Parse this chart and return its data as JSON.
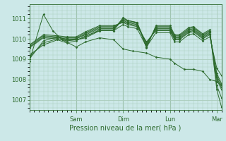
{
  "title": "Pression niveau de la mer( hPa )",
  "bg_color": "#cce8e8",
  "grid_color": "#aaccbb",
  "line_color": "#2d6a2d",
  "marker_color": "#2d6a2d",
  "ylim": [
    1006.5,
    1011.7
  ],
  "yticks": [
    1007,
    1008,
    1009,
    1010,
    1011
  ],
  "xlim_days": [
    0,
    4.1
  ],
  "day_positions": [
    1.0,
    2.0,
    3.0,
    4.0
  ],
  "day_labels": [
    "Sam",
    "Dim",
    "Lun",
    "Mar"
  ],
  "series": [
    {
      "x": [
        0.0,
        0.3,
        0.6,
        0.8,
        1.0,
        1.2,
        1.5,
        1.8,
        2.0,
        2.1,
        2.3,
        2.5,
        2.7,
        3.0,
        3.1,
        3.2,
        3.4,
        3.5,
        3.7,
        3.85,
        4.0,
        4.1
      ],
      "y": [
        1009.0,
        1009.9,
        1010.1,
        1009.95,
        1009.95,
        1010.05,
        1010.4,
        1010.4,
        1011.05,
        1010.9,
        1010.8,
        1009.55,
        1010.65,
        1010.65,
        1010.2,
        1010.2,
        1010.55,
        1010.6,
        1010.25,
        1010.45,
        1007.5,
        1006.65
      ]
    },
    {
      "x": [
        0.0,
        0.3,
        0.6,
        0.8,
        1.0,
        1.2,
        1.5,
        1.8,
        2.0,
        2.1,
        2.3,
        2.5,
        2.7,
        3.0,
        3.1,
        3.2,
        3.4,
        3.5,
        3.7,
        3.85,
        4.0,
        4.1
      ],
      "y": [
        1009.1,
        1009.8,
        1010.0,
        1009.9,
        1009.95,
        1010.1,
        1010.45,
        1010.45,
        1010.95,
        1010.85,
        1010.75,
        1009.6,
        1010.6,
        1010.6,
        1010.15,
        1010.15,
        1010.5,
        1010.55,
        1010.2,
        1010.4,
        1007.7,
        1007.1
      ]
    },
    {
      "x": [
        0.0,
        0.3,
        0.6,
        0.8,
        1.0,
        1.2,
        1.5,
        1.8,
        2.0,
        2.1,
        2.3,
        2.5,
        2.7,
        3.0,
        3.1,
        3.2,
        3.4,
        3.5,
        3.7,
        3.85,
        4.0,
        4.1
      ],
      "y": [
        1009.55,
        1010.05,
        1010.0,
        1009.95,
        1010.0,
        1010.2,
        1010.5,
        1010.5,
        1011.0,
        1010.9,
        1010.8,
        1009.7,
        1010.55,
        1010.55,
        1010.1,
        1010.1,
        1010.45,
        1010.5,
        1010.15,
        1010.35,
        1008.0,
        1007.5
      ]
    },
    {
      "x": [
        0.0,
        0.3,
        0.6,
        0.8,
        1.0,
        1.2,
        1.5,
        1.8,
        2.0,
        2.1,
        2.3,
        2.5,
        2.7,
        3.0,
        3.1,
        3.2,
        3.4,
        3.5,
        3.7,
        3.85,
        4.0,
        4.1
      ],
      "y": [
        1009.6,
        1010.1,
        1010.05,
        1010.0,
        1010.0,
        1010.25,
        1010.55,
        1010.55,
        1010.9,
        1010.8,
        1010.7,
        1009.75,
        1010.5,
        1010.5,
        1010.05,
        1010.05,
        1010.4,
        1010.45,
        1010.1,
        1010.3,
        1008.1,
        1007.6
      ]
    },
    {
      "x": [
        0.0,
        0.3,
        0.6,
        0.8,
        1.0,
        1.2,
        1.5,
        1.8,
        2.0,
        2.1,
        2.3,
        2.5,
        2.7,
        3.0,
        3.1,
        3.2,
        3.4,
        3.5,
        3.7,
        3.85,
        4.0,
        4.1
      ],
      "y": [
        1009.65,
        1010.15,
        1010.1,
        1010.05,
        1010.05,
        1010.3,
        1010.6,
        1010.6,
        1010.85,
        1010.75,
        1010.65,
        1009.8,
        1010.45,
        1010.45,
        1010.0,
        1010.0,
        1010.35,
        1010.4,
        1010.05,
        1010.25,
        1008.2,
        1007.7
      ]
    },
    {
      "x": [
        0.0,
        0.3,
        0.6,
        0.8,
        1.0,
        1.2,
        1.5,
        1.8,
        2.0,
        2.1,
        2.3,
        2.5,
        2.7,
        3.0,
        3.1,
        3.2,
        3.4,
        3.5,
        3.7,
        3.85,
        4.0,
        4.1
      ],
      "y": [
        1009.7,
        1010.2,
        1010.15,
        1010.1,
        1010.1,
        1010.35,
        1010.65,
        1010.65,
        1010.8,
        1010.7,
        1010.6,
        1009.85,
        1010.4,
        1010.4,
        1009.95,
        1009.95,
        1010.3,
        1010.35,
        1010.0,
        1010.2,
        1008.3,
        1007.8
      ]
    },
    {
      "x": [
        0.0,
        0.3,
        0.6,
        0.8,
        1.0,
        1.2,
        1.5,
        1.8,
        2.0,
        2.1,
        2.3,
        2.5,
        2.7,
        3.0,
        3.1,
        3.2,
        3.4,
        3.5,
        3.7,
        3.85,
        4.0,
        4.1
      ],
      "y": [
        1009.2,
        1009.7,
        1009.95,
        1009.8,
        1009.9,
        1010.15,
        1010.4,
        1010.4,
        1010.7,
        1010.6,
        1010.5,
        1009.6,
        1010.3,
        1010.3,
        1009.85,
        1009.85,
        1010.2,
        1010.25,
        1009.9,
        1010.1,
        1008.55,
        1008.2
      ]
    },
    {
      "x": [
        0.0,
        0.3,
        0.5,
        0.7,
        1.0,
        1.2,
        1.5,
        1.8,
        2.0,
        2.2,
        2.5,
        2.7,
        3.0,
        3.1,
        3.3,
        3.5,
        3.7,
        3.85,
        4.0,
        4.1
      ],
      "y": [
        1008.9,
        1011.2,
        1010.4,
        1009.95,
        1009.6,
        1009.85,
        1010.05,
        1009.95,
        1009.5,
        1009.4,
        1009.3,
        1009.1,
        1009.0,
        1008.8,
        1008.5,
        1008.5,
        1008.4,
        1008.0,
        1007.9,
        1007.7
      ]
    }
  ]
}
